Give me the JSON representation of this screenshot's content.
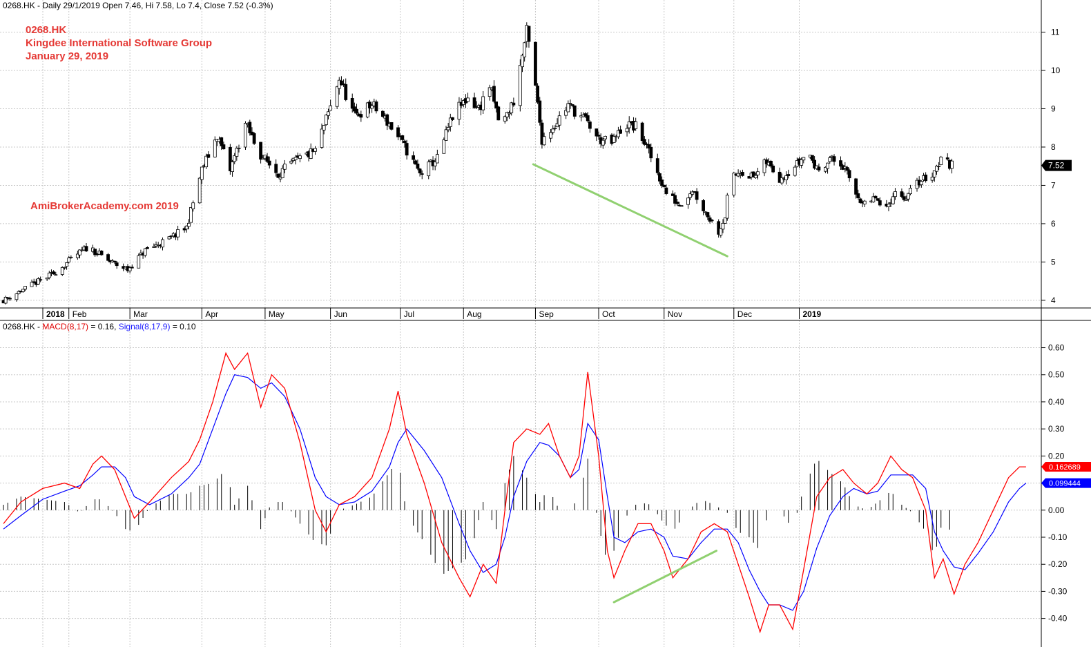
{
  "price_header": {
    "text": "0268.HK - Daily 29/1/2019 Open 7.46, Hi 7.58, Lo 7.4, Close 7.52 (-0.3%)"
  },
  "annotations": {
    "ticker": "0268.HK",
    "company": "Kingdee International Software Group",
    "date": "January 29, 2019",
    "watermark": "AmiBrokerAcademy.com  2019"
  },
  "macd_header": {
    "prefix": "0268.HK - ",
    "macd_label": "MACD(8,17)",
    "macd_value": " = 0.16, ",
    "signal_label": "Signal(8,17,9)",
    "signal_value": " = 0.10"
  },
  "colors": {
    "candle": "#000000",
    "macd": "#ff0000",
    "signal": "#0000ff",
    "histogram": "#000000",
    "trendline": "#90d070",
    "grid": "#c8c8c8",
    "annotation": "#e53935"
  },
  "chart_data": [
    {
      "type": "candlestick",
      "title": "0268.HK - Daily 29/1/2019 Open 7.46, Hi 7.58, Lo 7.4, Close 7.52 (-0.3%)",
      "y_ticks": [
        4,
        5,
        6,
        7,
        8,
        9,
        10,
        11
      ],
      "ylim": [
        3.8,
        11.55
      ],
      "x_labels": [
        "2018",
        "Feb",
        "Mar",
        "Apr",
        "May",
        "Jun",
        "Jul",
        "Aug",
        "Sep",
        "Oct",
        "Nov",
        "Dec",
        "2019"
      ],
      "last_close_label": "7.52",
      "close_path": [
        [
          "2018-01-02",
          4.0
        ],
        [
          "2018-01-15",
          4.4
        ],
        [
          "2018-01-25",
          4.7
        ],
        [
          "2018-02-05",
          5.2
        ],
        [
          "2018-02-10",
          5.4
        ],
        [
          "2018-02-20",
          5.0
        ],
        [
          "2018-02-28",
          4.8
        ],
        [
          "2018-03-08",
          5.3
        ],
        [
          "2018-03-19",
          5.6
        ],
        [
          "2018-03-27",
          5.9
        ],
        [
          "2018-04-03",
          7.4
        ],
        [
          "2018-04-10",
          8.3
        ],
        [
          "2018-04-16",
          7.4
        ],
        [
          "2018-04-23",
          8.6
        ],
        [
          "2018-04-30",
          7.8
        ],
        [
          "2018-05-08",
          7.3
        ],
        [
          "2018-05-15",
          7.6
        ],
        [
          "2018-05-25",
          7.9
        ],
        [
          "2018-06-02",
          9.2
        ],
        [
          "2018-06-05",
          9.8
        ],
        [
          "2018-06-12",
          8.8
        ],
        [
          "2018-06-20",
          9.1
        ],
        [
          "2018-06-28",
          8.6
        ],
        [
          "2018-07-05",
          8.0
        ],
        [
          "2018-07-12",
          7.3
        ],
        [
          "2018-07-20",
          7.7
        ],
        [
          "2018-07-27",
          8.8
        ],
        [
          "2018-08-03",
          9.3
        ],
        [
          "2018-08-08",
          9.0
        ],
        [
          "2018-08-13",
          9.6
        ],
        [
          "2018-08-18",
          8.5
        ],
        [
          "2018-08-24",
          9.2
        ],
        [
          "2018-08-28",
          10.4
        ],
        [
          "2018-08-30",
          11.0
        ],
        [
          "2018-09-02",
          10.0
        ],
        [
          "2018-09-06",
          8.2
        ],
        [
          "2018-09-12",
          8.6
        ],
        [
          "2018-09-18",
          9.1
        ],
        [
          "2018-09-26",
          8.7
        ],
        [
          "2018-10-02",
          8.2
        ],
        [
          "2018-10-08",
          8.1
        ],
        [
          "2018-10-14",
          8.6
        ],
        [
          "2018-10-20",
          8.5
        ],
        [
          "2018-10-27",
          7.6
        ],
        [
          "2018-11-02",
          6.8
        ],
        [
          "2018-11-08",
          6.5
        ],
        [
          "2018-11-14",
          6.9
        ],
        [
          "2018-11-20",
          6.3
        ],
        [
          "2018-11-26",
          5.8
        ],
        [
          "2018-11-29",
          6.2
        ],
        [
          "2018-12-01",
          7.1
        ],
        [
          "2018-12-06",
          7.4
        ],
        [
          "2018-12-12",
          7.2
        ],
        [
          "2018-12-18",
          7.6
        ],
        [
          "2018-12-24",
          7.2
        ],
        [
          "2019-01-02",
          7.6
        ],
        [
          "2019-01-06",
          7.9
        ],
        [
          "2019-01-10",
          7.4
        ],
        [
          "2019-01-16",
          7.7
        ],
        [
          "2019-01-22",
          7.5
        ],
        [
          "2019-01-28",
          6.8
        ],
        [
          "2019-02-02",
          6.4
        ],
        [
          "2019-02-06",
          6.7
        ],
        [
          "2019-02-10",
          6.2
        ],
        [
          "2019-02-14",
          6.8
        ],
        [
          "2019-02-20",
          6.7
        ],
        [
          "2019-02-26",
          7.1
        ],
        [
          "2019-03-04",
          7.3
        ],
        [
          "2019-03-08",
          7.7
        ],
        [
          "2019-03-13",
          7.52
        ]
      ],
      "trendline": [
        [
          "2018-09-02",
          7.55
        ],
        [
          "2018-11-30",
          5.15
        ]
      ]
    },
    {
      "type": "line",
      "title": "0268.HK - MACD(8,17) = 0.16, Signal(8,17,9) = 0.10",
      "y_ticks": [
        0.6,
        0.5,
        0.4,
        0.3,
        0.2,
        0.1,
        0.0,
        -0.1,
        -0.2,
        -0.3,
        -0.4
      ],
      "ylim": [
        -0.48,
        0.66
      ],
      "series": [
        {
          "name": "MACD(8,17)",
          "value_label": "0.162689",
          "points": [
            [
              "2018-01-02",
              -0.05
            ],
            [
              "2018-01-10",
              0.03
            ],
            [
              "2018-01-20",
              0.08
            ],
            [
              "2018-01-30",
              0.1
            ],
            [
              "2018-02-06",
              0.08
            ],
            [
              "2018-02-12",
              0.17
            ],
            [
              "2018-02-16",
              0.2
            ],
            [
              "2018-02-22",
              0.15
            ],
            [
              "2018-02-27",
              0.05
            ],
            [
              "2018-03-03",
              -0.03
            ],
            [
              "2018-03-10",
              0.03
            ],
            [
              "2018-03-20",
              0.12
            ],
            [
              "2018-03-28",
              0.18
            ],
            [
              "2018-04-02",
              0.26
            ],
            [
              "2018-04-08",
              0.4
            ],
            [
              "2018-04-14",
              0.58
            ],
            [
              "2018-04-18",
              0.52
            ],
            [
              "2018-04-24",
              0.58
            ],
            [
              "2018-04-30",
              0.38
            ],
            [
              "2018-05-05",
              0.5
            ],
            [
              "2018-05-11",
              0.45
            ],
            [
              "2018-05-18",
              0.25
            ],
            [
              "2018-05-25",
              0.0
            ],
            [
              "2018-05-30",
              -0.08
            ],
            [
              "2018-06-05",
              0.02
            ],
            [
              "2018-06-12",
              0.05
            ],
            [
              "2018-06-20",
              0.12
            ],
            [
              "2018-06-28",
              0.3
            ],
            [
              "2018-07-02",
              0.44
            ],
            [
              "2018-07-06",
              0.28
            ],
            [
              "2018-07-14",
              0.1
            ],
            [
              "2018-07-22",
              -0.12
            ],
            [
              "2018-07-30",
              -0.25
            ],
            [
              "2018-08-04",
              -0.32
            ],
            [
              "2018-08-10",
              -0.2
            ],
            [
              "2018-08-16",
              -0.27
            ],
            [
              "2018-08-20",
              0.0
            ],
            [
              "2018-08-24",
              0.25
            ],
            [
              "2018-08-30",
              0.3
            ],
            [
              "2018-09-05",
              0.28
            ],
            [
              "2018-09-09",
              0.32
            ],
            [
              "2018-09-14",
              0.2
            ],
            [
              "2018-09-19",
              0.12
            ],
            [
              "2018-09-23",
              0.2
            ],
            [
              "2018-09-27",
              0.51
            ],
            [
              "2018-10-02",
              0.2
            ],
            [
              "2018-10-06",
              -0.15
            ],
            [
              "2018-10-09",
              -0.25
            ],
            [
              "2018-10-14",
              -0.15
            ],
            [
              "2018-10-20",
              -0.05
            ],
            [
              "2018-10-26",
              -0.05
            ],
            [
              "2018-11-01",
              -0.15
            ],
            [
              "2018-11-05",
              -0.25
            ],
            [
              "2018-11-12",
              -0.18
            ],
            [
              "2018-11-18",
              -0.08
            ],
            [
              "2018-11-24",
              -0.05
            ],
            [
              "2018-11-30",
              -0.08
            ],
            [
              "2018-12-05",
              -0.2
            ],
            [
              "2018-12-10",
              -0.32
            ],
            [
              "2018-12-15",
              -0.45
            ],
            [
              "2018-12-19",
              -0.35
            ],
            [
              "2018-12-24",
              -0.35
            ],
            [
              "2018-12-30",
              -0.44
            ],
            [
              "2019-01-04",
              -0.22
            ],
            [
              "2019-01-10",
              0.05
            ],
            [
              "2019-01-16",
              0.12
            ],
            [
              "2019-01-22",
              0.15
            ],
            [
              "2019-01-27",
              0.1
            ],
            [
              "2019-02-02",
              0.06
            ],
            [
              "2019-02-07",
              0.1
            ],
            [
              "2019-02-13",
              0.2
            ],
            [
              "2019-02-18",
              0.15
            ],
            [
              "2019-02-23",
              0.12
            ],
            [
              "2019-03-01",
              0.0
            ],
            [
              "2019-03-05",
              -0.25
            ],
            [
              "2019-03-09",
              -0.18
            ],
            [
              "2019-03-14",
              -0.31
            ],
            [
              "2019-03-19",
              -0.2
            ],
            [
              "2019-03-25",
              -0.12
            ],
            [
              "2019-04-01",
              0.0
            ],
            [
              "2019-04-08",
              0.12
            ],
            [
              "2019-04-13",
              0.16
            ],
            [
              "2019-04-16",
              0.16
            ]
          ]
        },
        {
          "name": "Signal(8,17,9)",
          "value_label": "0.099444",
          "points": [
            [
              "2018-01-02",
              -0.07
            ],
            [
              "2018-01-10",
              -0.02
            ],
            [
              "2018-01-20",
              0.04
            ],
            [
              "2018-01-30",
              0.07
            ],
            [
              "2018-02-06",
              0.09
            ],
            [
              "2018-02-12",
              0.13
            ],
            [
              "2018-02-16",
              0.16
            ],
            [
              "2018-02-22",
              0.16
            ],
            [
              "2018-02-27",
              0.12
            ],
            [
              "2018-03-03",
              0.05
            ],
            [
              "2018-03-10",
              0.02
            ],
            [
              "2018-03-20",
              0.06
            ],
            [
              "2018-03-28",
              0.12
            ],
            [
              "2018-04-02",
              0.17
            ],
            [
              "2018-04-08",
              0.3
            ],
            [
              "2018-04-14",
              0.43
            ],
            [
              "2018-04-18",
              0.5
            ],
            [
              "2018-04-24",
              0.49
            ],
            [
              "2018-04-30",
              0.45
            ],
            [
              "2018-05-05",
              0.47
            ],
            [
              "2018-05-11",
              0.42
            ],
            [
              "2018-05-18",
              0.3
            ],
            [
              "2018-05-25",
              0.12
            ],
            [
              "2018-05-30",
              0.05
            ],
            [
              "2018-06-05",
              0.02
            ],
            [
              "2018-06-12",
              0.03
            ],
            [
              "2018-06-20",
              0.07
            ],
            [
              "2018-06-28",
              0.16
            ],
            [
              "2018-07-02",
              0.25
            ],
            [
              "2018-07-06",
              0.3
            ],
            [
              "2018-07-14",
              0.22
            ],
            [
              "2018-07-22",
              0.12
            ],
            [
              "2018-07-30",
              -0.05
            ],
            [
              "2018-08-04",
              -0.15
            ],
            [
              "2018-08-10",
              -0.23
            ],
            [
              "2018-08-16",
              -0.2
            ],
            [
              "2018-08-20",
              -0.1
            ],
            [
              "2018-08-24",
              0.05
            ],
            [
              "2018-08-30",
              0.18
            ],
            [
              "2018-09-05",
              0.25
            ],
            [
              "2018-09-09",
              0.24
            ],
            [
              "2018-09-14",
              0.2
            ],
            [
              "2018-09-19",
              0.12
            ],
            [
              "2018-09-23",
              0.15
            ],
            [
              "2018-09-27",
              0.32
            ],
            [
              "2018-10-02",
              0.26
            ],
            [
              "2018-10-06",
              0.05
            ],
            [
              "2018-10-09",
              -0.1
            ],
            [
              "2018-10-14",
              -0.12
            ],
            [
              "2018-10-20",
              -0.08
            ],
            [
              "2018-10-26",
              -0.07
            ],
            [
              "2018-11-01",
              -0.1
            ],
            [
              "2018-11-05",
              -0.17
            ],
            [
              "2018-11-12",
              -0.18
            ],
            [
              "2018-11-18",
              -0.12
            ],
            [
              "2018-11-24",
              -0.07
            ],
            [
              "2018-11-30",
              -0.07
            ],
            [
              "2018-12-05",
              -0.12
            ],
            [
              "2018-12-10",
              -0.22
            ],
            [
              "2018-12-15",
              -0.3
            ],
            [
              "2018-12-19",
              -0.35
            ],
            [
              "2018-12-24",
              -0.35
            ],
            [
              "2018-12-30",
              -0.37
            ],
            [
              "2019-01-04",
              -0.3
            ],
            [
              "2019-01-10",
              -0.14
            ],
            [
              "2019-01-16",
              -0.02
            ],
            [
              "2019-01-22",
              0.05
            ],
            [
              "2019-01-27",
              0.08
            ],
            [
              "2019-02-02",
              0.06
            ],
            [
              "2019-02-07",
              0.07
            ],
            [
              "2019-02-13",
              0.13
            ],
            [
              "2019-02-18",
              0.13
            ],
            [
              "2019-02-23",
              0.13
            ],
            [
              "2019-03-01",
              0.08
            ],
            [
              "2019-03-05",
              -0.08
            ],
            [
              "2019-03-09",
              -0.15
            ],
            [
              "2019-03-14",
              -0.21
            ],
            [
              "2019-03-19",
              -0.22
            ],
            [
              "2019-03-25",
              -0.16
            ],
            [
              "2019-04-01",
              -0.08
            ],
            [
              "2019-04-08",
              0.03
            ],
            [
              "2019-04-13",
              0.08
            ],
            [
              "2019-04-16",
              0.1
            ]
          ]
        }
      ],
      "histogram": "MACD minus Signal (per bar)",
      "trendline": [
        [
          "2018-10-09",
          -0.34
        ],
        [
          "2018-11-25",
          -0.15
        ]
      ]
    }
  ]
}
